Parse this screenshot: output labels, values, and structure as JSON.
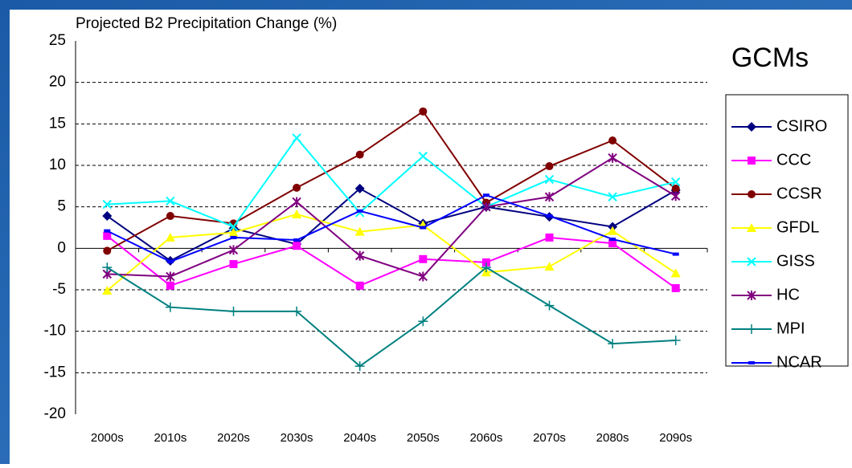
{
  "chart_data": {
    "type": "line",
    "title": "Projected B2 Precipitation Change (%)",
    "legend_title": "GCMs",
    "categories": [
      "2000s",
      "2010s",
      "2020s",
      "2030s",
      "2040s",
      "2050s",
      "2060s",
      "2070s",
      "2080s",
      "2090s"
    ],
    "ylim": [
      -20,
      25
    ],
    "yticks": [
      -20,
      -15,
      -10,
      -5,
      0,
      5,
      10,
      15,
      20,
      25
    ],
    "grid": true,
    "legend": "right",
    "series": [
      {
        "name": "CSIRO",
        "color": "#000080",
        "marker": "diamond",
        "values": [
          3.9,
          -1.5,
          2.4,
          0.5,
          7.2,
          3.0,
          5.0,
          3.8,
          2.6,
          7.0
        ]
      },
      {
        "name": "CCC",
        "color": "#ff00ff",
        "marker": "square",
        "values": [
          1.5,
          -4.5,
          -1.9,
          0.3,
          -4.5,
          -1.3,
          -1.7,
          1.3,
          0.6,
          -4.8
        ]
      },
      {
        "name": "CCSR",
        "color": "#800000",
        "marker": "circle",
        "values": [
          -0.3,
          3.9,
          3.0,
          7.3,
          11.3,
          16.5,
          5.5,
          9.9,
          13.0,
          7.2
        ]
      },
      {
        "name": "GFDL",
        "color": "#ffff00",
        "marker": "triangle",
        "values": [
          -5.1,
          1.3,
          1.9,
          4.1,
          2.0,
          2.8,
          -2.9,
          -2.2,
          2.1,
          -3.0
        ]
      },
      {
        "name": "GISS",
        "color": "#00ffff",
        "marker": "x",
        "values": [
          5.3,
          5.7,
          2.6,
          13.3,
          4.3,
          11.1,
          5.0,
          8.3,
          6.2,
          8.0
        ]
      },
      {
        "name": "HC",
        "color": "#800080",
        "marker": "star",
        "values": [
          -3.1,
          -3.4,
          -0.2,
          5.6,
          -0.9,
          -3.4,
          5.0,
          6.2,
          10.9,
          6.3
        ]
      },
      {
        "name": "MPI",
        "color": "#008080",
        "marker": "plus",
        "values": [
          -2.3,
          -7.1,
          -7.6,
          -7.6,
          -14.2,
          -8.8,
          -2.3,
          -6.9,
          -11.5,
          -11.1
        ]
      },
      {
        "name": "NCAR",
        "color": "#0000ff",
        "marker": "dash",
        "values": [
          2.1,
          -1.6,
          1.3,
          1.0,
          4.5,
          2.5,
          6.4,
          3.9,
          1.1,
          -0.7
        ]
      }
    ]
  }
}
